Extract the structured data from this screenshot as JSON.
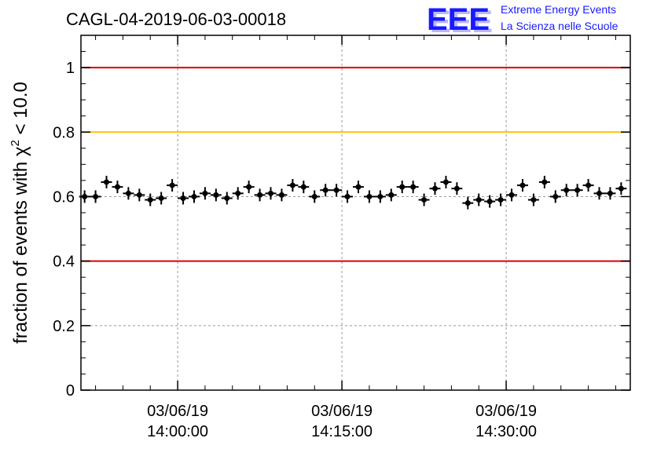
{
  "title": "CAGL-04-2019-06-03-00018",
  "logo": {
    "mark": "EEE",
    "line1": "Extreme Energy Events",
    "line2": "La Scienza nelle Scuole",
    "color": "#1a1aff"
  },
  "chart_data": {
    "type": "scatter",
    "title": "CAGL-04-2019-06-03-00018",
    "ylabel_prefix": "fraction of events with ",
    "ylabel_chi": "χ",
    "ylabel_sup": "2",
    "ylabel_suffix": " < 10.0",
    "ylim": [
      0,
      1.1
    ],
    "yticks": [
      "0",
      "0.2",
      "0.4",
      "0.6",
      "0.8",
      "1"
    ],
    "xticks": [
      {
        "date": "03/06/19",
        "time": "14:00:00"
      },
      {
        "date": "03/06/19",
        "time": "14:15:00"
      },
      {
        "date": "03/06/19",
        "time": "14:30:00"
      }
    ],
    "xlim": [
      "13:51:10",
      "14:41:20"
    ],
    "grid": true,
    "reference_lines": [
      {
        "y": 1.0,
        "color": "#e00000"
      },
      {
        "y": 0.8,
        "color": "#ffc000"
      },
      {
        "y": 0.4,
        "color": "#e00000"
      }
    ],
    "points": [
      {
        "t": "13:51:30",
        "y": 0.6
      },
      {
        "t": "13:52:30",
        "y": 0.6
      },
      {
        "t": "13:53:30",
        "y": 0.645
      },
      {
        "t": "13:54:30",
        "y": 0.63
      },
      {
        "t": "13:55:30",
        "y": 0.61
      },
      {
        "t": "13:56:30",
        "y": 0.605
      },
      {
        "t": "13:57:30",
        "y": 0.59
      },
      {
        "t": "13:58:30",
        "y": 0.595
      },
      {
        "t": "13:59:30",
        "y": 0.635
      },
      {
        "t": "14:00:30",
        "y": 0.595
      },
      {
        "t": "14:01:30",
        "y": 0.6
      },
      {
        "t": "14:02:30",
        "y": 0.61
      },
      {
        "t": "14:03:30",
        "y": 0.605
      },
      {
        "t": "14:04:30",
        "y": 0.595
      },
      {
        "t": "14:05:30",
        "y": 0.61
      },
      {
        "t": "14:06:30",
        "y": 0.63
      },
      {
        "t": "14:07:30",
        "y": 0.605
      },
      {
        "t": "14:08:30",
        "y": 0.61
      },
      {
        "t": "14:09:30",
        "y": 0.605
      },
      {
        "t": "14:10:30",
        "y": 0.635
      },
      {
        "t": "14:11:30",
        "y": 0.63
      },
      {
        "t": "14:12:30",
        "y": 0.6
      },
      {
        "t": "14:13:30",
        "y": 0.62
      },
      {
        "t": "14:14:30",
        "y": 0.62
      },
      {
        "t": "14:15:30",
        "y": 0.6
      },
      {
        "t": "14:16:30",
        "y": 0.63
      },
      {
        "t": "14:17:30",
        "y": 0.6
      },
      {
        "t": "14:18:30",
        "y": 0.6
      },
      {
        "t": "14:19:30",
        "y": 0.605
      },
      {
        "t": "14:20:30",
        "y": 0.63
      },
      {
        "t": "14:21:30",
        "y": 0.63
      },
      {
        "t": "14:22:30",
        "y": 0.59
      },
      {
        "t": "14:23:30",
        "y": 0.625
      },
      {
        "t": "14:24:30",
        "y": 0.645
      },
      {
        "t": "14:25:30",
        "y": 0.625
      },
      {
        "t": "14:26:30",
        "y": 0.58
      },
      {
        "t": "14:27:30",
        "y": 0.59
      },
      {
        "t": "14:28:30",
        "y": 0.585
      },
      {
        "t": "14:29:30",
        "y": 0.59
      },
      {
        "t": "14:30:30",
        "y": 0.605
      },
      {
        "t": "14:31:30",
        "y": 0.635
      },
      {
        "t": "14:32:30",
        "y": 0.59
      },
      {
        "t": "14:33:30",
        "y": 0.645
      },
      {
        "t": "14:34:30",
        "y": 0.6
      },
      {
        "t": "14:35:30",
        "y": 0.62
      },
      {
        "t": "14:36:30",
        "y": 0.62
      },
      {
        "t": "14:37:30",
        "y": 0.635
      },
      {
        "t": "14:38:30",
        "y": 0.61
      },
      {
        "t": "14:39:30",
        "y": 0.61
      },
      {
        "t": "14:40:30",
        "y": 0.625
      }
    ],
    "marker_color": "#000000"
  }
}
